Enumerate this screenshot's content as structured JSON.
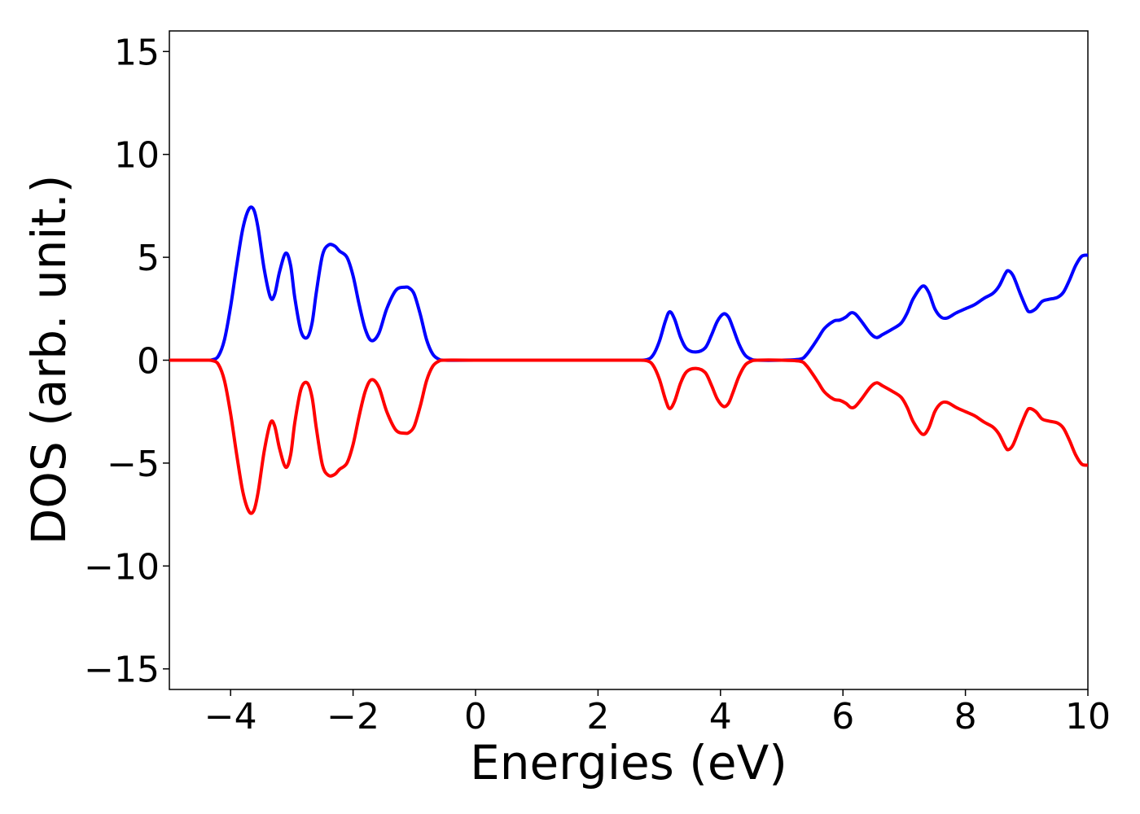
{
  "chart_data": {
    "type": "line",
    "title": "",
    "xlabel": "Energies (eV)",
    "ylabel": "DOS (arb. unit.)",
    "xlim": [
      -5,
      10
    ],
    "ylim": [
      -16,
      16
    ],
    "x_ticks": [
      -4,
      -2,
      0,
      2,
      4,
      6,
      8,
      10
    ],
    "x_tick_labels": [
      "−4",
      "−2",
      "0",
      "2",
      "4",
      "6",
      "8",
      "10"
    ],
    "y_ticks": [
      -15,
      -10,
      -5,
      0,
      5,
      10,
      15
    ],
    "y_tick_labels": [
      "−15",
      "−10",
      "−5",
      "0",
      "5",
      "10",
      "15"
    ],
    "grid": false,
    "legend": "none",
    "series": [
      {
        "color": "#0000ff",
        "x": [
          -5.0,
          -4.6,
          -4.4,
          -4.3,
          -4.2,
          -4.1,
          -4.0,
          -3.9,
          -3.8,
          -3.7,
          -3.62,
          -3.55,
          -3.45,
          -3.35,
          -3.28,
          -3.2,
          -3.1,
          -3.02,
          -2.95,
          -2.85,
          -2.75,
          -2.67,
          -2.6,
          -2.5,
          -2.4,
          -2.3,
          -2.22,
          -2.1,
          -2.0,
          -1.9,
          -1.8,
          -1.7,
          -1.58,
          -1.45,
          -1.3,
          -1.15,
          -1.08,
          -1.0,
          -0.9,
          -0.8,
          -0.7,
          -0.6,
          -0.5,
          0.0,
          2.0,
          2.6,
          2.8,
          2.9,
          3.0,
          3.1,
          3.17,
          3.25,
          3.35,
          3.45,
          3.6,
          3.75,
          3.85,
          3.95,
          4.05,
          4.13,
          4.2,
          4.3,
          4.4,
          4.5,
          4.6,
          5.0,
          5.3,
          5.4,
          5.5,
          5.6,
          5.7,
          5.85,
          5.95,
          6.05,
          6.13,
          6.2,
          6.3,
          6.45,
          6.55,
          6.65,
          6.8,
          6.95,
          7.05,
          7.15,
          7.3,
          7.4,
          7.5,
          7.6,
          7.7,
          7.85,
          8.0,
          8.15,
          8.3,
          8.45,
          8.55,
          8.65,
          8.7,
          8.78,
          8.9,
          9.0,
          9.05,
          9.15,
          9.25,
          9.35,
          9.5,
          9.6,
          9.7,
          9.8,
          9.9,
          10.0
        ],
        "y": [
          0.0,
          0.0,
          0.0,
          0.02,
          0.2,
          1.0,
          2.6,
          4.6,
          6.4,
          7.35,
          7.3,
          6.4,
          4.4,
          3.05,
          3.2,
          4.3,
          5.2,
          4.6,
          3.0,
          1.4,
          1.1,
          1.8,
          3.3,
          5.1,
          5.6,
          5.55,
          5.3,
          5.0,
          4.1,
          2.7,
          1.5,
          0.95,
          1.3,
          2.5,
          3.4,
          3.55,
          3.5,
          3.2,
          2.2,
          1.0,
          0.3,
          0.05,
          0.0,
          0.0,
          0.0,
          0.0,
          0.03,
          0.25,
          0.9,
          1.9,
          2.35,
          2.0,
          1.1,
          0.55,
          0.4,
          0.6,
          1.2,
          1.9,
          2.25,
          2.1,
          1.6,
          0.8,
          0.25,
          0.05,
          0.0,
          0.0,
          0.05,
          0.25,
          0.65,
          1.1,
          1.55,
          1.9,
          1.95,
          2.1,
          2.3,
          2.25,
          1.9,
          1.3,
          1.1,
          1.25,
          1.5,
          1.8,
          2.3,
          3.0,
          3.6,
          3.3,
          2.5,
          2.1,
          2.05,
          2.3,
          2.5,
          2.7,
          3.0,
          3.25,
          3.6,
          4.2,
          4.35,
          4.1,
          3.2,
          2.5,
          2.35,
          2.5,
          2.85,
          2.95,
          3.05,
          3.3,
          3.9,
          4.6,
          5.05,
          5.1
        ]
      },
      {
        "color": "#ff0000",
        "x": [
          -5.0,
          -4.6,
          -4.4,
          -4.3,
          -4.2,
          -4.1,
          -4.0,
          -3.9,
          -3.8,
          -3.7,
          -3.62,
          -3.55,
          -3.45,
          -3.35,
          -3.28,
          -3.2,
          -3.1,
          -3.02,
          -2.95,
          -2.85,
          -2.75,
          -2.67,
          -2.6,
          -2.5,
          -2.4,
          -2.3,
          -2.22,
          -2.1,
          -2.0,
          -1.9,
          -1.8,
          -1.7,
          -1.58,
          -1.45,
          -1.3,
          -1.15,
          -1.08,
          -1.0,
          -0.9,
          -0.8,
          -0.7,
          -0.6,
          -0.5,
          0.0,
          2.0,
          2.6,
          2.8,
          2.9,
          3.0,
          3.1,
          3.17,
          3.25,
          3.35,
          3.45,
          3.6,
          3.75,
          3.85,
          3.95,
          4.05,
          4.13,
          4.2,
          4.3,
          4.4,
          4.5,
          4.6,
          5.0,
          5.3,
          5.4,
          5.5,
          5.6,
          5.7,
          5.85,
          5.95,
          6.05,
          6.13,
          6.2,
          6.3,
          6.45,
          6.55,
          6.65,
          6.8,
          6.95,
          7.05,
          7.15,
          7.3,
          7.4,
          7.5,
          7.6,
          7.7,
          7.85,
          8.0,
          8.15,
          8.3,
          8.45,
          8.55,
          8.65,
          8.7,
          8.78,
          8.9,
          9.0,
          9.05,
          9.15,
          9.25,
          9.35,
          9.5,
          9.6,
          9.7,
          9.8,
          9.9,
          10.0
        ],
        "y": [
          0.0,
          0.0,
          0.0,
          -0.02,
          -0.2,
          -1.0,
          -2.6,
          -4.6,
          -6.4,
          -7.35,
          -7.3,
          -6.4,
          -4.4,
          -3.05,
          -3.2,
          -4.3,
          -5.2,
          -4.6,
          -3.0,
          -1.4,
          -1.1,
          -1.8,
          -3.3,
          -5.1,
          -5.6,
          -5.55,
          -5.3,
          -5.0,
          -4.1,
          -2.7,
          -1.5,
          -0.95,
          -1.3,
          -2.5,
          -3.4,
          -3.55,
          -3.5,
          -3.2,
          -2.2,
          -1.0,
          -0.3,
          -0.05,
          0.0,
          0.0,
          0.0,
          0.0,
          -0.03,
          -0.25,
          -0.9,
          -1.9,
          -2.35,
          -2.0,
          -1.1,
          -0.55,
          -0.4,
          -0.6,
          -1.2,
          -1.9,
          -2.25,
          -2.1,
          -1.6,
          -0.8,
          -0.25,
          -0.05,
          0.0,
          0.0,
          -0.05,
          -0.25,
          -0.65,
          -1.1,
          -1.55,
          -1.9,
          -1.95,
          -2.1,
          -2.3,
          -2.25,
          -1.9,
          -1.3,
          -1.1,
          -1.25,
          -1.5,
          -1.8,
          -2.3,
          -3.0,
          -3.6,
          -3.3,
          -2.5,
          -2.1,
          -2.05,
          -2.3,
          -2.5,
          -2.7,
          -3.0,
          -3.25,
          -3.6,
          -4.2,
          -4.35,
          -4.1,
          -3.2,
          -2.5,
          -2.35,
          -2.5,
          -2.85,
          -2.95,
          -3.05,
          -3.3,
          -3.9,
          -4.6,
          -5.05,
          -5.1
        ]
      }
    ]
  }
}
